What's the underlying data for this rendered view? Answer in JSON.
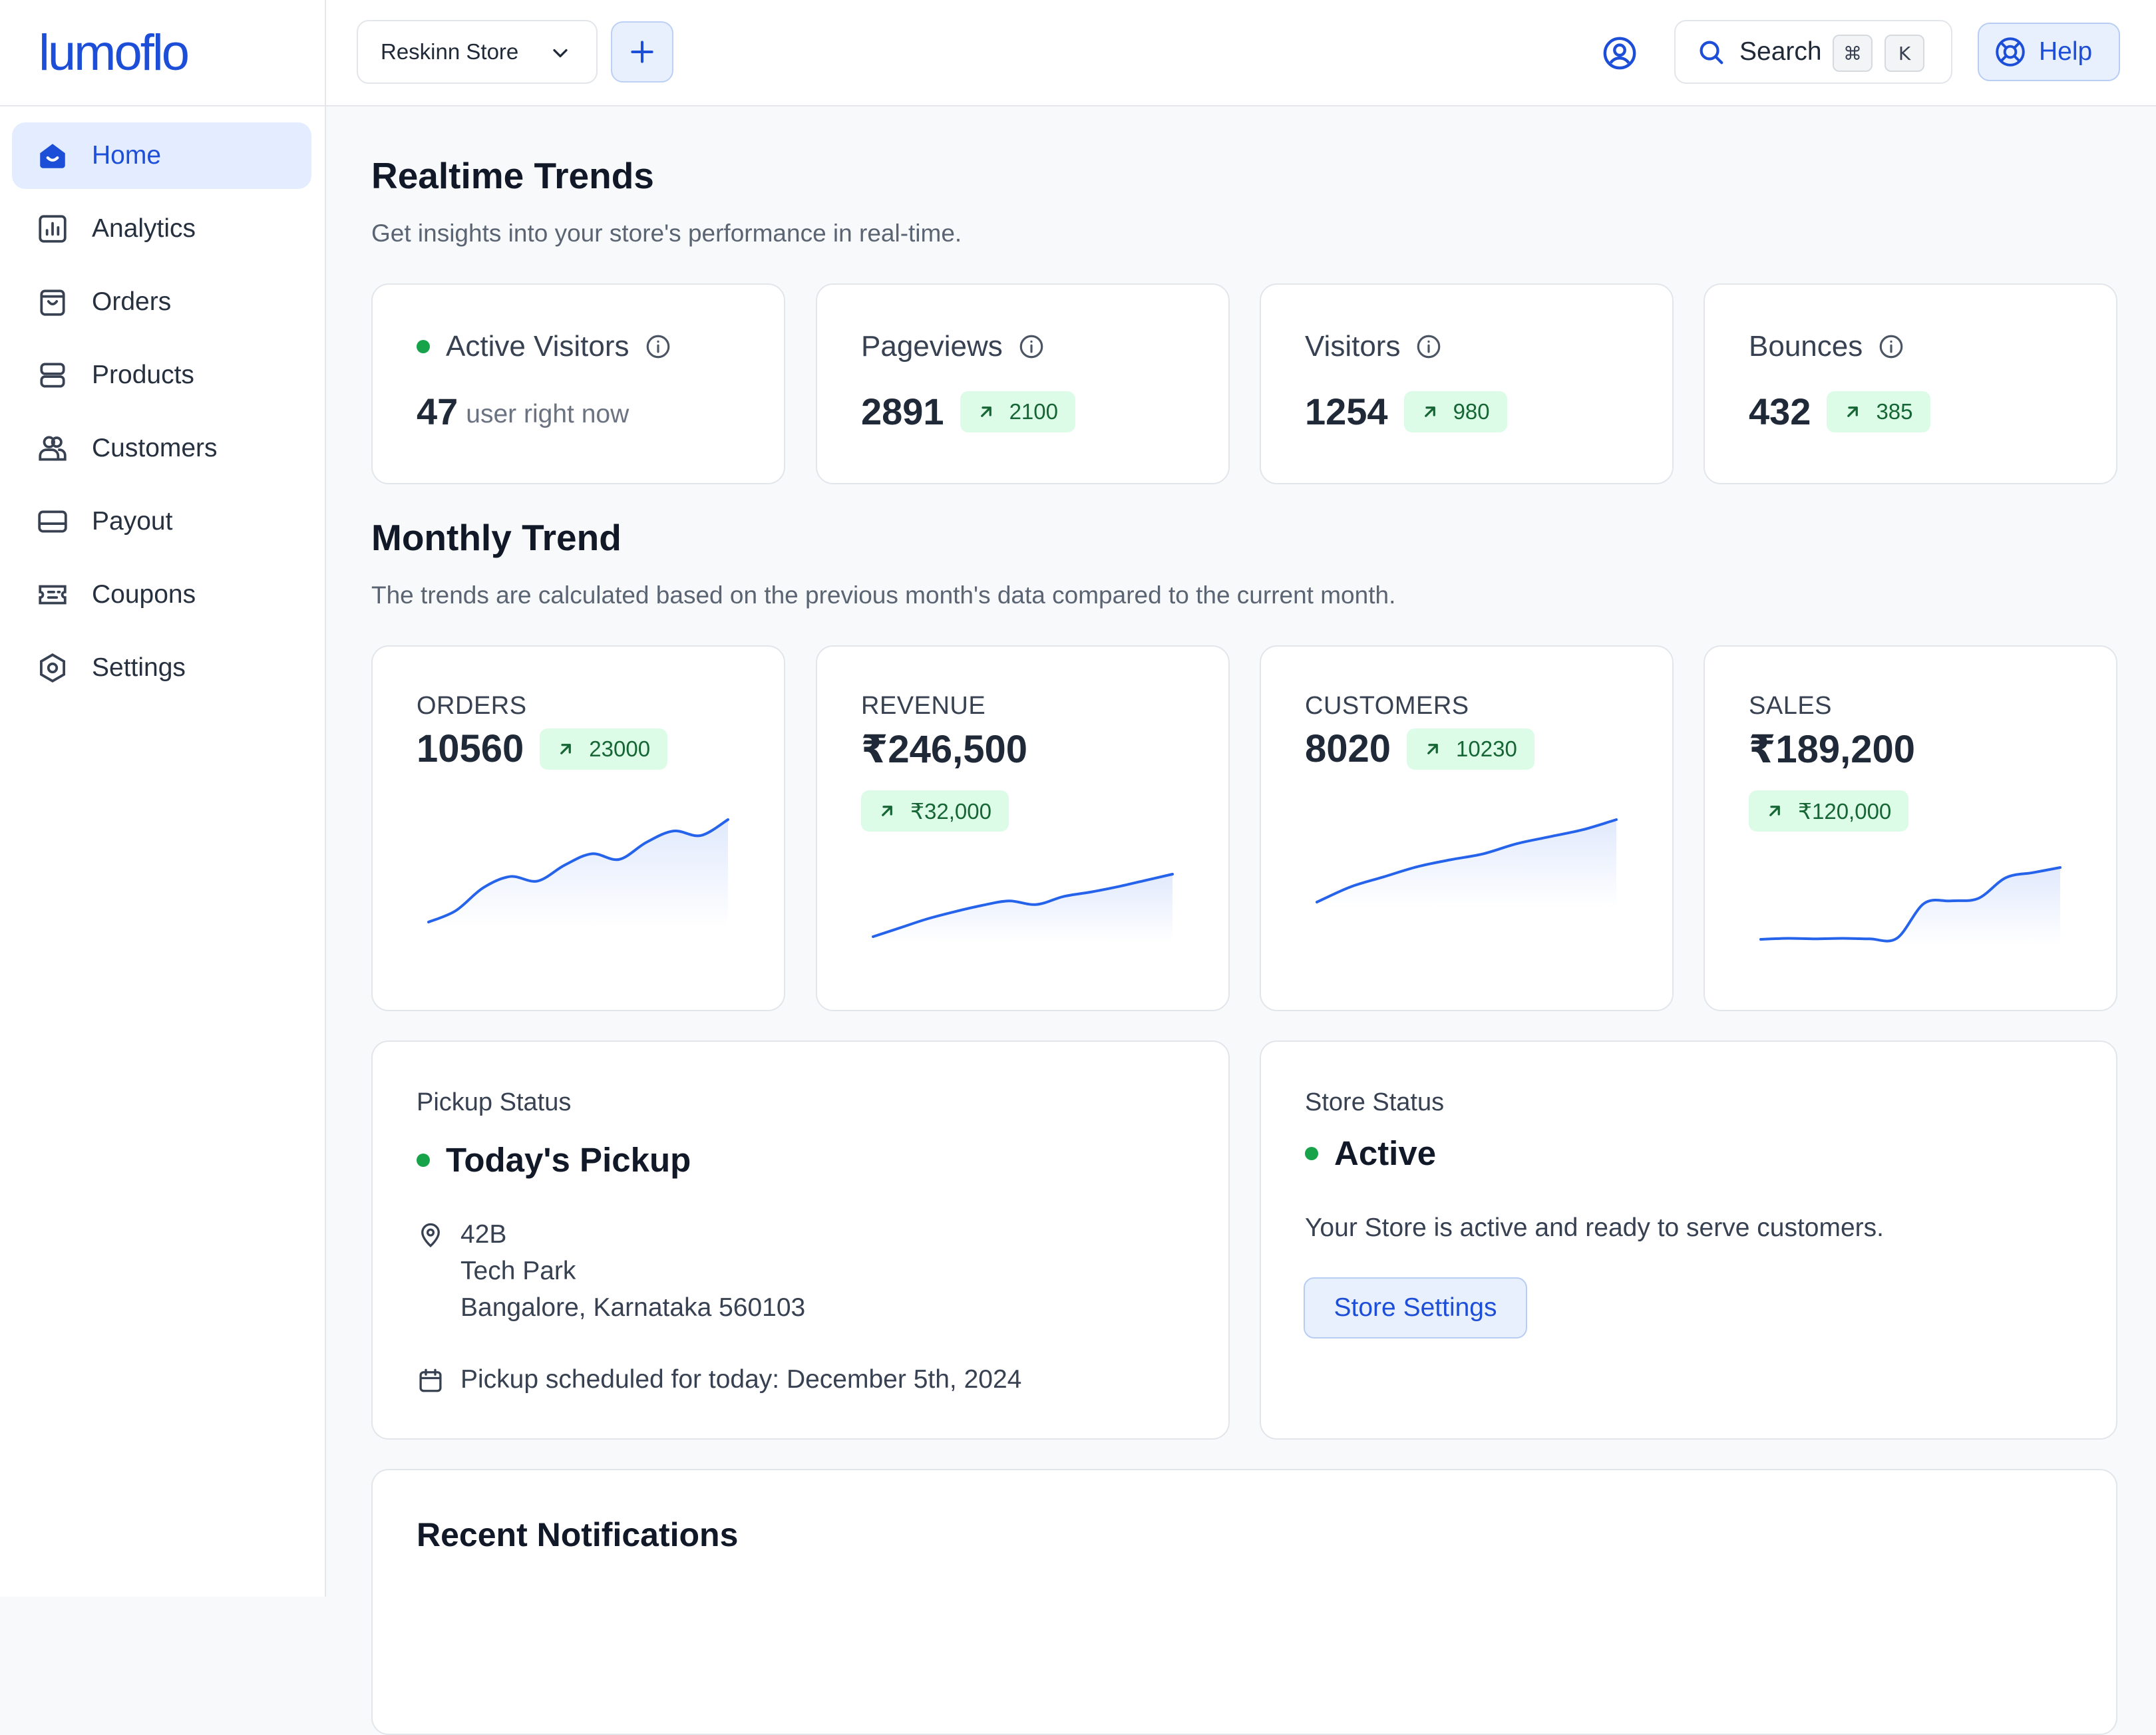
{
  "brand": {
    "logo_text": "lumoflo"
  },
  "nav": {
    "items": [
      {
        "label": "Home",
        "icon": "home-icon",
        "active": true
      },
      {
        "label": "Analytics",
        "icon": "analytics-icon"
      },
      {
        "label": "Orders",
        "icon": "orders-icon"
      },
      {
        "label": "Products",
        "icon": "products-icon"
      },
      {
        "label": "Customers",
        "icon": "customers-icon"
      },
      {
        "label": "Payout",
        "icon": "payout-icon"
      },
      {
        "label": "Coupons",
        "icon": "coupons-icon"
      },
      {
        "label": "Settings",
        "icon": "settings-icon"
      }
    ]
  },
  "topbar": {
    "store_name": "Reskinn Store",
    "search_label": "Search",
    "shortcut_keys": [
      "⌘",
      "K"
    ],
    "help_label": "Help"
  },
  "realtime": {
    "title": "Realtime Trends",
    "subtitle": "Get insights into your store's performance in real-time.",
    "cards": [
      {
        "label": "Active Visitors",
        "value": "47",
        "unit": "user right now",
        "live": true
      },
      {
        "label": "Pageviews",
        "value": "2891",
        "delta": "2100"
      },
      {
        "label": "Visitors",
        "value": "1254",
        "delta": "980"
      },
      {
        "label": "Bounces",
        "value": "432",
        "delta": "385"
      }
    ]
  },
  "monthly": {
    "title": "Monthly Trend",
    "subtitle": "The trends are calculated based on the previous month's data compared to the current month.",
    "cards": [
      {
        "label": "ORDERS",
        "value": "10560",
        "delta": "23000"
      },
      {
        "label": "REVENUE",
        "value": "₹246,500",
        "delta": "₹32,000"
      },
      {
        "label": "CUSTOMERS",
        "value": "8020",
        "delta": "10230"
      },
      {
        "label": "SALES",
        "value": "₹189,200",
        "delta": "₹120,000"
      }
    ]
  },
  "chart_data": [
    {
      "type": "area",
      "title": "",
      "values": [
        2,
        3,
        5,
        6,
        5.6,
        7,
        8,
        7.5,
        9,
        10,
        9.6,
        11
      ]
    },
    {
      "type": "area",
      "title": "",
      "values": [
        1,
        2,
        3,
        3.8,
        4.5,
        5,
        4.6,
        5.5,
        6,
        6.6,
        7.3,
        8
      ]
    },
    {
      "type": "area",
      "title": "",
      "values": [
        1,
        2.5,
        3.5,
        4.5,
        5.2,
        5.8,
        6.8,
        7.5,
        8.2,
        9.2
      ]
    },
    {
      "type": "area",
      "title": "",
      "values": [
        1,
        1.2,
        1.1,
        1.2,
        1.1,
        1.2,
        8,
        8.5,
        9,
        13,
        14,
        15
      ]
    }
  ],
  "pickup": {
    "label": "Pickup Status",
    "title": "Today's Pickup",
    "address_line1": "42B",
    "address_line2": "Tech Park",
    "address_line3": "Bangalore, Karnataka 560103",
    "schedule": "Pickup scheduled for today: December 5th, 2024"
  },
  "store_status": {
    "label": "Store Status",
    "title": "Active",
    "description": "Your Store is active and ready to serve customers.",
    "button_label": "Store Settings"
  },
  "notifications": {
    "title": "Recent Notifications"
  },
  "colors": {
    "accent": "#1d4ed8",
    "positive_bg": "#dcfce7",
    "positive_text": "#166534",
    "live_dot": "#16a34a",
    "line": "#2563eb"
  }
}
